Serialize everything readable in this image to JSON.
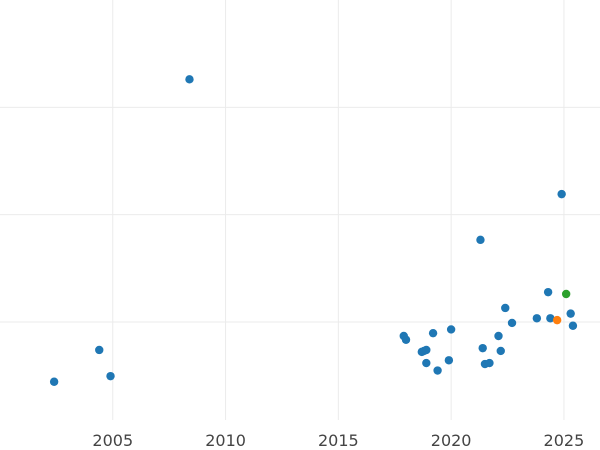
{
  "chart_data": {
    "type": "scatter",
    "title": "",
    "xlabel": "",
    "ylabel": "",
    "xlim": [
      2000.0,
      2026.6
    ],
    "ylim": [
      0,
      1
    ],
    "grid": true,
    "x_ticks": [
      2005,
      2010,
      2015,
      2020,
      2025
    ],
    "x_tick_labels": [
      "2005",
      "2010",
      "2015",
      "2020",
      "2025"
    ],
    "y_gridlines": [
      0.2333,
      0.4889,
      0.7444
    ],
    "series": [
      {
        "color": "#1f77b4",
        "points": [
          {
            "x": 2002.4,
            "y": 0.0911
          },
          {
            "x": 2004.4,
            "y": 0.1667
          },
          {
            "x": 2004.9,
            "y": 0.1044
          },
          {
            "x": 2008.4,
            "y": 0.8111
          },
          {
            "x": 2017.9,
            "y": 0.2
          },
          {
            "x": 2018.0,
            "y": 0.1911
          },
          {
            "x": 2018.7,
            "y": 0.1622
          },
          {
            "x": 2018.8,
            "y": 0.1644
          },
          {
            "x": 2018.9,
            "y": 0.1667
          },
          {
            "x": 2018.9,
            "y": 0.1356
          },
          {
            "x": 2019.2,
            "y": 0.2067
          },
          {
            "x": 2019.4,
            "y": 0.1178
          },
          {
            "x": 2019.9,
            "y": 0.1422
          },
          {
            "x": 2020.0,
            "y": 0.2156
          },
          {
            "x": 2021.3,
            "y": 0.4289
          },
          {
            "x": 2021.4,
            "y": 0.1711
          },
          {
            "x": 2021.5,
            "y": 0.1333
          },
          {
            "x": 2021.7,
            "y": 0.1356
          },
          {
            "x": 2022.1,
            "y": 0.2
          },
          {
            "x": 2022.2,
            "y": 0.1644
          },
          {
            "x": 2022.4,
            "y": 0.2667
          },
          {
            "x": 2022.7,
            "y": 0.2311
          },
          {
            "x": 2023.8,
            "y": 0.2422
          },
          {
            "x": 2024.3,
            "y": 0.3044
          },
          {
            "x": 2024.4,
            "y": 0.2422
          },
          {
            "x": 2024.9,
            "y": 0.5378
          },
          {
            "x": 2025.3,
            "y": 0.2533
          },
          {
            "x": 2025.4,
            "y": 0.2244
          }
        ]
      },
      {
        "color": "#ff7f0e",
        "points": [
          {
            "x": 2024.7,
            "y": 0.2378
          }
        ]
      },
      {
        "color": "#2ca02c",
        "points": [
          {
            "x": 2025.1,
            "y": 0.3
          }
        ]
      }
    ]
  }
}
